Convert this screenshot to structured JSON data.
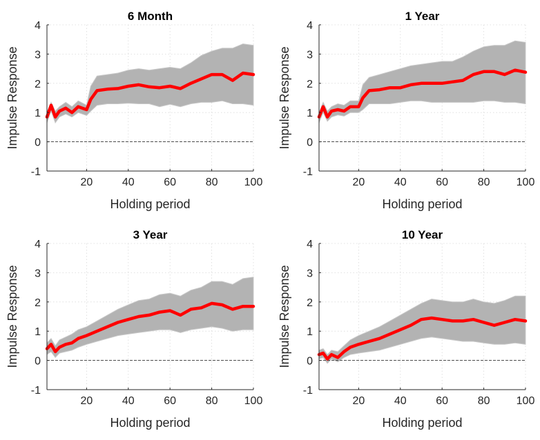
{
  "chart_data": [
    {
      "type": "line",
      "title": "6 Month",
      "xlabel": "Holding period",
      "ylabel": "Impulse Response",
      "xlim": [
        1,
        100
      ],
      "ylim": [
        -1,
        4
      ],
      "xticks": [
        20,
        40,
        60,
        80,
        100
      ],
      "yticks": [
        -1,
        0,
        1,
        2,
        3,
        4
      ],
      "grid": "on (dotted)",
      "zero_line": "dashed at y=0",
      "band_color": "#b3b3b3",
      "line_color": "#ff0000",
      "x": [
        1,
        3,
        5,
        7,
        10,
        13,
        16,
        20,
        22,
        25,
        30,
        35,
        40,
        45,
        50,
        55,
        60,
        65,
        70,
        75,
        80,
        85,
        90,
        95,
        100
      ],
      "series": [
        {
          "values": [
            0.85,
            1.25,
            0.85,
            1.05,
            1.15,
            1.0,
            1.2,
            1.1,
            1.45,
            1.75,
            1.8,
            1.82,
            1.9,
            1.95,
            1.88,
            1.85,
            1.9,
            1.82,
            2.0,
            2.15,
            2.3,
            2.3,
            2.1,
            2.35,
            2.3
          ]
        },
        {
          "values": [
            0.65,
            1.05,
            0.65,
            0.85,
            0.95,
            0.85,
            1.0,
            0.9,
            1.05,
            1.25,
            1.3,
            1.3,
            1.32,
            1.3,
            1.3,
            1.2,
            1.28,
            1.2,
            1.3,
            1.35,
            1.35,
            1.4,
            1.3,
            1.3,
            1.25
          ]
        },
        {
          "values": [
            1.0,
            1.35,
            1.05,
            1.2,
            1.35,
            1.2,
            1.4,
            1.25,
            1.9,
            2.25,
            2.3,
            2.35,
            2.45,
            2.5,
            2.45,
            2.5,
            2.55,
            2.5,
            2.7,
            2.95,
            3.1,
            3.2,
            3.2,
            3.35,
            3.3
          ]
        }
      ]
    },
    {
      "type": "line",
      "title": "1 Year",
      "xlabel": "Holding period",
      "ylabel": "Impulse Response",
      "xlim": [
        1,
        100
      ],
      "ylim": [
        -1,
        4
      ],
      "xticks": [
        20,
        40,
        60,
        80,
        100
      ],
      "yticks": [
        -1,
        0,
        1,
        2,
        3,
        4
      ],
      "grid": "on (dotted)",
      "zero_line": "dashed at y=0",
      "band_color": "#b3b3b3",
      "line_color": "#ff0000",
      "x": [
        1,
        3,
        5,
        7,
        10,
        13,
        16,
        20,
        22,
        25,
        30,
        35,
        40,
        45,
        50,
        55,
        60,
        65,
        70,
        75,
        80,
        85,
        90,
        95,
        100
      ],
      "series": [
        {
          "values": [
            0.85,
            1.2,
            0.85,
            1.05,
            1.1,
            1.05,
            1.2,
            1.2,
            1.5,
            1.75,
            1.78,
            1.85,
            1.85,
            1.95,
            2.0,
            2.0,
            2.0,
            2.05,
            2.1,
            2.3,
            2.4,
            2.4,
            2.3,
            2.45,
            2.38
          ]
        },
        {
          "values": [
            0.65,
            1.0,
            0.7,
            0.85,
            0.92,
            0.88,
            1.0,
            1.0,
            1.1,
            1.3,
            1.3,
            1.3,
            1.35,
            1.4,
            1.4,
            1.35,
            1.35,
            1.35,
            1.35,
            1.35,
            1.4,
            1.4,
            1.35,
            1.35,
            1.3
          ]
        },
        {
          "values": [
            1.0,
            1.35,
            1.05,
            1.2,
            1.3,
            1.25,
            1.4,
            1.4,
            1.95,
            2.2,
            2.3,
            2.4,
            2.5,
            2.6,
            2.65,
            2.7,
            2.75,
            2.75,
            2.9,
            3.1,
            3.25,
            3.3,
            3.3,
            3.45,
            3.4
          ]
        }
      ]
    },
    {
      "type": "line",
      "title": "3 Year",
      "xlabel": "Holding period",
      "ylabel": "Impulse Response",
      "xlim": [
        1,
        100
      ],
      "ylim": [
        -1,
        4
      ],
      "xticks": [
        20,
        40,
        60,
        80,
        100
      ],
      "yticks": [
        -1,
        0,
        1,
        2,
        3,
        4
      ],
      "grid": "on (dotted)",
      "zero_line": "dashed at y=0",
      "band_color": "#b3b3b3",
      "line_color": "#ff0000",
      "x": [
        1,
        3,
        5,
        7,
        10,
        13,
        16,
        20,
        25,
        30,
        35,
        40,
        45,
        50,
        55,
        60,
        65,
        70,
        75,
        80,
        85,
        90,
        95,
        100
      ],
      "series": [
        {
          "values": [
            0.4,
            0.55,
            0.3,
            0.45,
            0.55,
            0.6,
            0.75,
            0.85,
            1.0,
            1.15,
            1.3,
            1.4,
            1.5,
            1.55,
            1.65,
            1.7,
            1.55,
            1.75,
            1.8,
            1.95,
            1.9,
            1.75,
            1.85,
            1.85
          ]
        },
        {
          "values": [
            0.2,
            0.3,
            0.1,
            0.25,
            0.3,
            0.35,
            0.45,
            0.55,
            0.65,
            0.75,
            0.85,
            0.9,
            0.95,
            1.0,
            1.05,
            1.05,
            0.95,
            1.05,
            1.1,
            1.15,
            1.1,
            1.0,
            1.05,
            1.05
          ]
        },
        {
          "values": [
            0.6,
            0.75,
            0.5,
            0.7,
            0.8,
            0.9,
            1.05,
            1.15,
            1.35,
            1.55,
            1.75,
            1.9,
            2.05,
            2.1,
            2.25,
            2.3,
            2.2,
            2.4,
            2.5,
            2.7,
            2.7,
            2.6,
            2.8,
            2.85
          ]
        }
      ]
    },
    {
      "type": "line",
      "title": "10 Year",
      "xlabel": "Holding period",
      "ylabel": "Impulse Response",
      "xlim": [
        1,
        100
      ],
      "ylim": [
        -1,
        4
      ],
      "xticks": [
        20,
        40,
        60,
        80,
        100
      ],
      "yticks": [
        -1,
        0,
        1,
        2,
        3,
        4
      ],
      "grid": "on (dotted)",
      "zero_line": "dashed at y=0",
      "band_color": "#b3b3b3",
      "line_color": "#ff0000",
      "x": [
        1,
        3,
        5,
        7,
        10,
        13,
        16,
        20,
        25,
        30,
        35,
        40,
        45,
        50,
        55,
        60,
        65,
        70,
        75,
        80,
        85,
        90,
        95,
        100
      ],
      "series": [
        {
          "values": [
            0.2,
            0.25,
            0.05,
            0.2,
            0.1,
            0.3,
            0.45,
            0.55,
            0.65,
            0.75,
            0.9,
            1.05,
            1.2,
            1.4,
            1.45,
            1.4,
            1.35,
            1.35,
            1.4,
            1.3,
            1.2,
            1.3,
            1.4,
            1.35
          ]
        },
        {
          "values": [
            0.05,
            0.1,
            -0.1,
            0.05,
            -0.05,
            0.1,
            0.2,
            0.25,
            0.3,
            0.35,
            0.45,
            0.55,
            0.65,
            0.75,
            0.8,
            0.75,
            0.7,
            0.65,
            0.65,
            0.6,
            0.55,
            0.55,
            0.6,
            0.55
          ]
        },
        {
          "values": [
            0.35,
            0.4,
            0.2,
            0.35,
            0.3,
            0.5,
            0.7,
            0.85,
            1.0,
            1.15,
            1.35,
            1.55,
            1.75,
            1.95,
            2.1,
            2.05,
            2.0,
            2.0,
            2.1,
            2.0,
            1.95,
            2.05,
            2.2,
            2.2
          ]
        }
      ]
    }
  ]
}
